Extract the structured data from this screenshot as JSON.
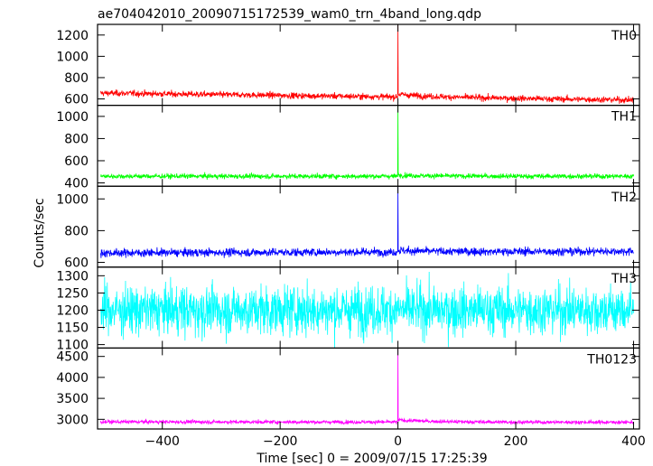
{
  "chart_data": {
    "type": "line",
    "title": "ae704042010_20090715172539_wam0_trn_4band_long.qdp",
    "xlabel": "Time [sec] 0 = 2009/07/15 17:25:39",
    "ylabel": "Counts/sec",
    "xlim": [
      -510,
      410
    ],
    "x_ticks": [
      -400,
      -200,
      0,
      200,
      400
    ],
    "x_tick_labels": [
      "−400",
      "−200",
      "0",
      "200",
      "400"
    ],
    "grid": false,
    "panels": [
      {
        "name": "TH0",
        "color": "#ff0000",
        "ylim": [
          540,
          1300
        ],
        "y_ticks": [
          600,
          800,
          1000,
          1200
        ],
        "baseline_start": 655,
        "baseline_end": 590,
        "noise": 45,
        "spike_x": 0,
        "spike_peak": 1300,
        "post_spike_level": 680
      },
      {
        "name": "TH1",
        "color": "#00ff00",
        "ylim": [
          370,
          1100
        ],
        "y_ticks": [
          400,
          600,
          800,
          1000
        ],
        "baseline_start": 460,
        "baseline_end": 460,
        "noise": 35,
        "spike_x": 0,
        "spike_peak": 1100,
        "post_spike_level": 470
      },
      {
        "name": "TH2",
        "color": "#0000ff",
        "ylim": [
          570,
          1080
        ],
        "y_ticks": [
          600,
          800,
          1000
        ],
        "baseline_start": 660,
        "baseline_end": 670,
        "noise": 40,
        "spike_x": 0,
        "spike_peak": 1080,
        "post_spike_level": 670
      },
      {
        "name": "TH3",
        "color": "#00ffff",
        "ylim": [
          1090,
          1325
        ],
        "y_ticks": [
          1100,
          1150,
          1200,
          1250,
          1300
        ],
        "baseline_start": 1200,
        "baseline_end": 1200,
        "noise": 110,
        "spike_x": null,
        "spike_peak": null,
        "post_spike_level": 1200
      },
      {
        "name": "TH0123",
        "color": "#ff00ff",
        "ylim": [
          2770,
          4700
        ],
        "y_ticks": [
          3000,
          3500,
          4000,
          4500
        ],
        "baseline_start": 2940,
        "baseline_end": 2930,
        "noise": 70,
        "spike_x": 0,
        "spike_peak": 4700,
        "post_spike_level": 2990
      }
    ]
  }
}
